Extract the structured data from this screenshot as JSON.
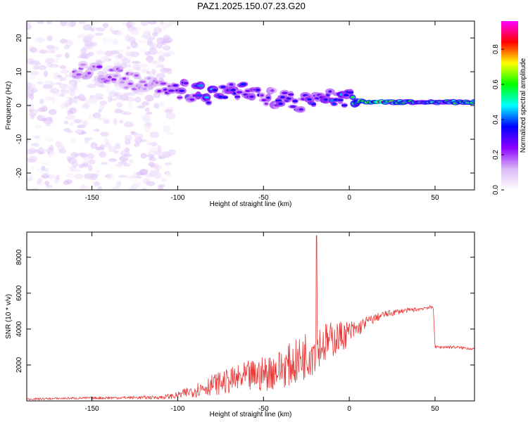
{
  "figure": {
    "title": "PAZ1.2025.150.07.23.G20"
  },
  "colors": {
    "axis": "#000000",
    "snr_line": "#e83a3a",
    "background": "#ffffff"
  },
  "chart_data": [
    {
      "type": "heatmap",
      "name": "spectrogram",
      "xlabel": "Height of straight line (km)",
      "ylabel": "Frequency (Hz)",
      "xlim": [
        -188,
        73
      ],
      "ylim": [
        -25,
        25
      ],
      "xticks": [
        -150,
        -100,
        -50,
        0,
        50
      ],
      "yticks": [
        -20,
        -10,
        0,
        10,
        20
      ],
      "colorbar": {
        "label": "Normalized spectral amplitude",
        "range": [
          0.0,
          0.96
        ],
        "ticks": [
          0.0,
          0.2,
          0.4,
          0.6,
          0.8
        ],
        "colormap": [
          "#ffffff",
          "#d9b8f5",
          "#8b00ff",
          "#0000ff",
          "#00ffff",
          "#00ff00",
          "#ffff00",
          "#ff0000",
          "#ff00ff"
        ]
      },
      "ridge": [
        {
          "x": -160,
          "f": 10,
          "a": 0.22
        },
        {
          "x": -145,
          "f": 10,
          "a": 0.2
        },
        {
          "x": -120,
          "f": 6,
          "a": 0.18
        },
        {
          "x": -105,
          "f": 5,
          "a": 0.25
        },
        {
          "x": -90,
          "f": 4,
          "a": 0.35
        },
        {
          "x": -80,
          "f": 3,
          "a": 0.4
        },
        {
          "x": -70,
          "f": 5,
          "a": 0.33
        },
        {
          "x": -60,
          "f": 4,
          "a": 0.35
        },
        {
          "x": -50,
          "f": 3,
          "a": 0.3
        },
        {
          "x": -40,
          "f": 2,
          "a": 0.3
        },
        {
          "x": -30,
          "f": 1,
          "a": 0.3
        },
        {
          "x": -20,
          "f": 2,
          "a": 0.35
        },
        {
          "x": -10,
          "f": 2,
          "a": 0.42
        },
        {
          "x": 0,
          "f": 2,
          "a": 0.45
        },
        {
          "x": 10,
          "f": 1,
          "a": 0.6
        },
        {
          "x": 15,
          "f": 1,
          "a": 0.85
        },
        {
          "x": 30,
          "f": 1,
          "a": 0.55
        },
        {
          "x": 50,
          "f": 1,
          "a": 0.5
        },
        {
          "x": 73,
          "f": 1,
          "a": 0.5
        }
      ],
      "noise_region_x": [
        -188,
        -103
      ]
    },
    {
      "type": "line",
      "name": "snr",
      "xlabel": "Height of straight line (km)",
      "ylabel": "SNR (10 * v/v)",
      "xlim": [
        -188,
        73
      ],
      "ylim": [
        0,
        9400
      ],
      "xticks": [
        -150,
        -100,
        -50,
        0,
        50
      ],
      "yticks": [
        2000,
        4000,
        6000,
        8000
      ],
      "grid": false,
      "series": [
        {
          "x": [
            -188,
            -160,
            -130,
            -110,
            -100,
            -90,
            -80,
            -70,
            -60,
            -50,
            -40,
            -30,
            -25,
            -20,
            -19,
            -18,
            -15,
            -10,
            -5,
            0,
            5,
            10,
            20,
            30,
            40,
            45,
            49,
            50,
            60,
            73
          ],
          "y": [
            100,
            150,
            180,
            200,
            300,
            600,
            900,
            1100,
            1300,
            1500,
            1800,
            2200,
            2600,
            3000,
            9200,
            3100,
            3200,
            3400,
            3600,
            3800,
            4000,
            4400,
            4800,
            5000,
            5100,
            5200,
            5200,
            3000,
            3000,
            2900
          ],
          "envelope_spread": [
            50,
            60,
            80,
            100,
            200,
            400,
            600,
            700,
            900,
            1000,
            1100,
            1300,
            1400,
            1500,
            0,
            1200,
            1200,
            1000,
            900,
            700,
            500,
            300,
            200,
            150,
            100,
            100,
            100,
            80,
            80,
            80
          ]
        }
      ]
    }
  ]
}
